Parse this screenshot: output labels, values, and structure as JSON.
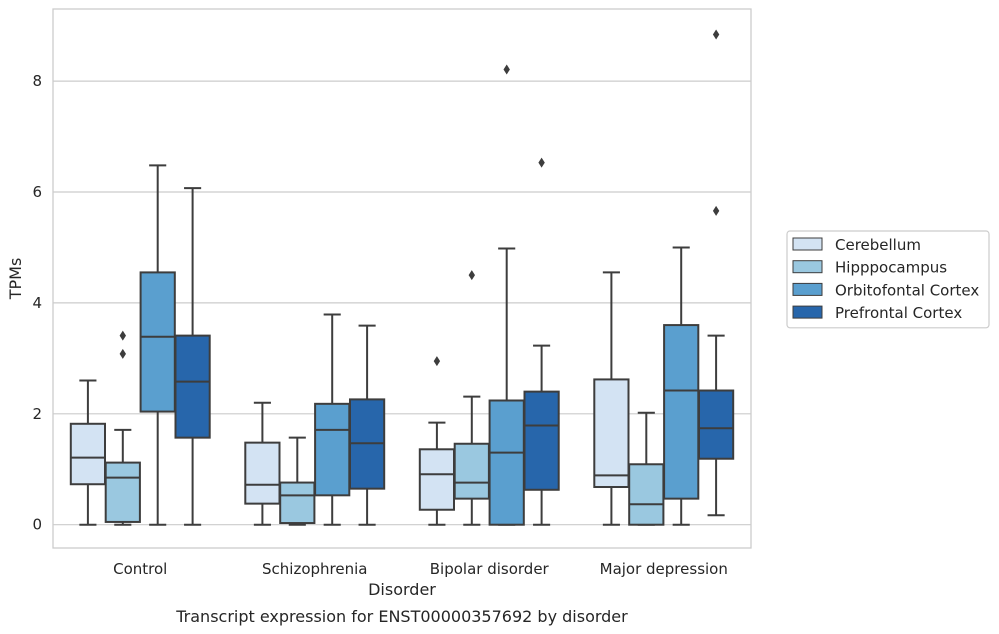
{
  "chart_data": {
    "type": "box",
    "caption": "Transcript expression for ENST00000357692 by disorder",
    "xlabel": "Disorder",
    "ylabel": "TPMs",
    "ylim": [
      -0.42,
      9.3
    ],
    "yticks": [
      0,
      2,
      4,
      6,
      8
    ],
    "grid": "horizontal",
    "legend_position": "right",
    "categories": [
      "Control",
      "Schizophrenia",
      "Bipolar disorder",
      "Major depression"
    ],
    "series": [
      {
        "name": "Cerebellum",
        "color": "#d3e3f3",
        "boxes": [
          {
            "whisker_low": 0,
            "q1": 0.73,
            "median": 1.21,
            "q3": 1.82,
            "whisker_high": 2.6,
            "outliers": []
          },
          {
            "whisker_low": 0,
            "q1": 0.38,
            "median": 0.72,
            "q3": 1.48,
            "whisker_high": 2.2,
            "outliers": []
          },
          {
            "whisker_low": 0,
            "q1": 0.27,
            "median": 0.91,
            "q3": 1.36,
            "whisker_high": 1.84,
            "outliers": [
              2.95
            ]
          },
          {
            "whisker_low": 0,
            "q1": 0.68,
            "median": 0.89,
            "q3": 2.62,
            "whisker_high": 4.55,
            "outliers": []
          }
        ]
      },
      {
        "name": "Hipppocampus",
        "color": "#9ac8e0",
        "boxes": [
          {
            "whisker_low": 0,
            "q1": 0.05,
            "median": 0.85,
            "q3": 1.12,
            "whisker_high": 1.71,
            "outliers": [
              3.41,
              3.08
            ]
          },
          {
            "whisker_low": 0,
            "q1": 0.03,
            "median": 0.53,
            "q3": 0.76,
            "whisker_high": 1.57,
            "outliers": []
          },
          {
            "whisker_low": 0,
            "q1": 0.47,
            "median": 0.76,
            "q3": 1.46,
            "whisker_high": 2.31,
            "outliers": [
              4.5
            ]
          },
          {
            "whisker_low": 0,
            "q1": 0,
            "median": 0.37,
            "q3": 1.09,
            "whisker_high": 2.02,
            "outliers": []
          }
        ]
      },
      {
        "name": "Orbitofontal Cortex",
        "color": "#5a9fcf",
        "boxes": [
          {
            "whisker_low": 0,
            "q1": 2.04,
            "median": 3.39,
            "q3": 4.55,
            "whisker_high": 6.48,
            "outliers": []
          },
          {
            "whisker_low": 0,
            "q1": 0.53,
            "median": 1.71,
            "q3": 2.18,
            "whisker_high": 3.79,
            "outliers": []
          },
          {
            "whisker_low": 0,
            "q1": 0,
            "median": 1.3,
            "q3": 2.24,
            "whisker_high": 4.98,
            "outliers": [
              8.21
            ]
          },
          {
            "whisker_low": 0,
            "q1": 0.47,
            "median": 2.42,
            "q3": 3.6,
            "whisker_high": 5.0,
            "outliers": []
          }
        ]
      },
      {
        "name": "Prefrontal Cortex",
        "color": "#2766ab",
        "boxes": [
          {
            "whisker_low": 0,
            "q1": 1.57,
            "median": 2.58,
            "q3": 3.41,
            "whisker_high": 6.07,
            "outliers": []
          },
          {
            "whisker_low": 0,
            "q1": 0.65,
            "median": 1.47,
            "q3": 2.26,
            "whisker_high": 3.59,
            "outliers": []
          },
          {
            "whisker_low": 0,
            "q1": 0.63,
            "median": 1.79,
            "q3": 2.4,
            "whisker_high": 3.23,
            "outliers": [
              6.53
            ]
          },
          {
            "whisker_low": 0.17,
            "q1": 1.19,
            "median": 1.74,
            "q3": 2.42,
            "whisker_high": 3.41,
            "outliers": [
              8.84,
              5.66
            ]
          }
        ]
      }
    ]
  }
}
